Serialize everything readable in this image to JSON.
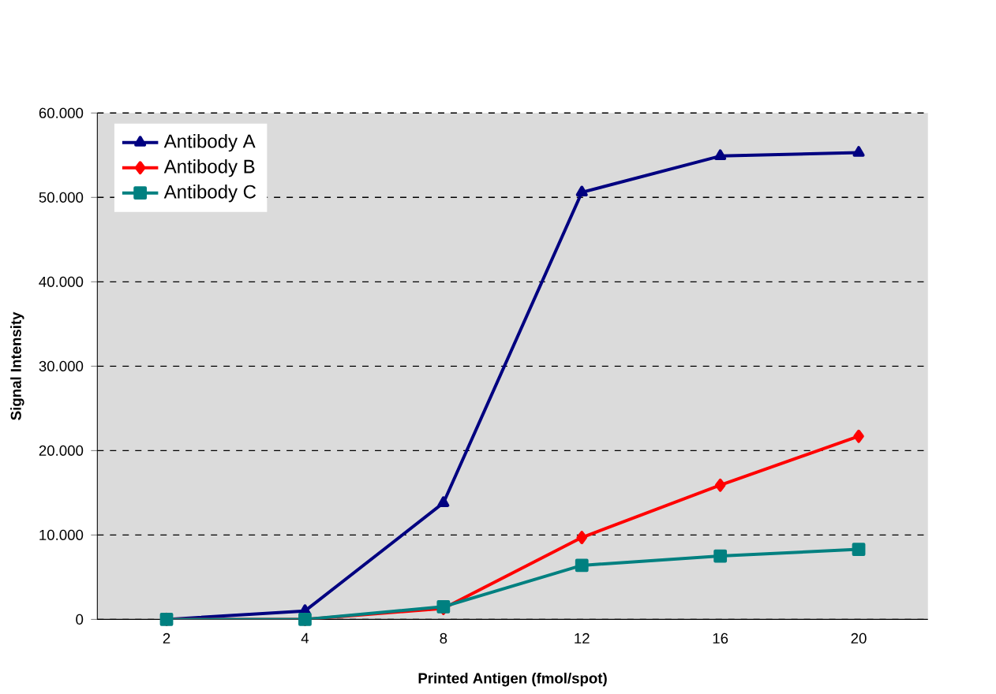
{
  "chart_data": {
    "type": "line",
    "xlabel": "Printed Antigen (fmol/spot)",
    "ylabel": "Signal Intensity",
    "categories": [
      "2",
      "4",
      "8",
      "12",
      "16",
      "20"
    ],
    "series": [
      {
        "name": "Antibody A",
        "color": "#000080",
        "marker": "triangle",
        "values": [
          0,
          1000,
          13800,
          50600,
          54900,
          55300
        ]
      },
      {
        "name": "Antibody B",
        "color": "#ff0000",
        "marker": "diamond",
        "values": [
          0,
          0,
          1300,
          9700,
          15900,
          21700
        ]
      },
      {
        "name": "Antibody C",
        "color": "#008080",
        "marker": "square",
        "values": [
          0,
          0,
          1500,
          6400,
          7500,
          8300
        ]
      }
    ],
    "ylim": [
      0,
      60000
    ],
    "yticks": [
      {
        "value": 0,
        "label": "0"
      },
      {
        "value": 10000,
        "label": "10.000"
      },
      {
        "value": 20000,
        "label": "20.000"
      },
      {
        "value": 30000,
        "label": "30.000"
      },
      {
        "value": 40000,
        "label": "40.000"
      },
      {
        "value": 50000,
        "label": "50.000"
      },
      {
        "value": 60000,
        "label": "60.000"
      }
    ],
    "grid": "y",
    "legend": "top left",
    "line_style": "solid"
  }
}
